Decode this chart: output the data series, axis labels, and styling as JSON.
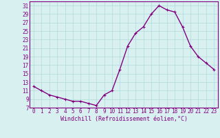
{
  "x": [
    0,
    1,
    2,
    3,
    4,
    5,
    6,
    7,
    8,
    9,
    10,
    11,
    12,
    13,
    14,
    15,
    16,
    17,
    18,
    19,
    20,
    21,
    22,
    23
  ],
  "y": [
    12,
    11,
    10,
    9.5,
    9,
    8.5,
    8.5,
    8,
    7.5,
    10,
    11,
    16,
    21.5,
    24.5,
    26,
    29,
    31,
    30,
    29.5,
    26,
    21.5,
    19,
    17.5,
    16
  ],
  "line_color": "#800080",
  "marker": "+",
  "marker_size": 3,
  "xlabel": "Windchill (Refroidissement éolien,°C)",
  "xlim": [
    -0.5,
    23.5
  ],
  "ylim": [
    7,
    32
  ],
  "yticks": [
    7,
    9,
    11,
    13,
    15,
    17,
    19,
    21,
    23,
    25,
    27,
    29,
    31
  ],
  "xticks": [
    0,
    1,
    2,
    3,
    4,
    5,
    6,
    7,
    8,
    9,
    10,
    11,
    12,
    13,
    14,
    15,
    16,
    17,
    18,
    19,
    20,
    21,
    22,
    23
  ],
  "grid_color": "#b0d8d8",
  "bg_color": "#d8f0f0",
  "xlabel_color": "#800080",
  "tick_color": "#800080",
  "linewidth": 1.0,
  "tick_fontsize": 5.5,
  "xlabel_fontsize": 6.0
}
